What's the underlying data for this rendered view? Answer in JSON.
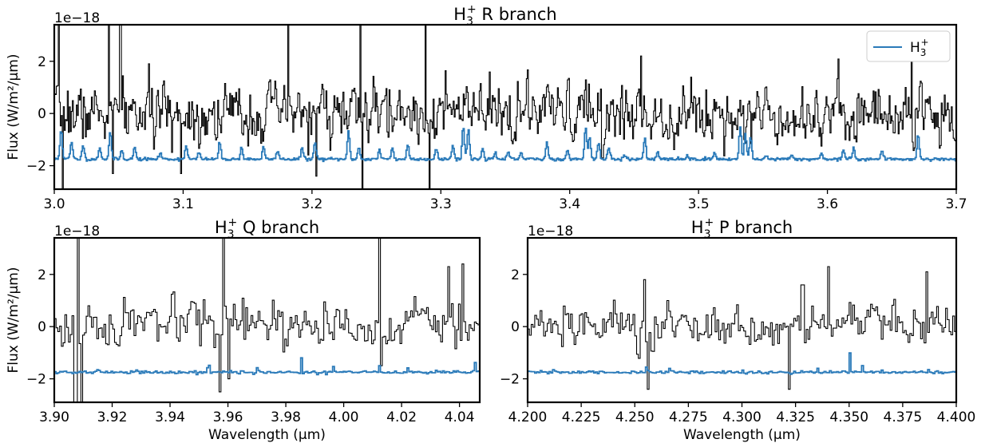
{
  "chart_data": [
    {
      "id": "r",
      "type": "line",
      "title_main": "H",
      "title_sub": "3",
      "title_sup": "+",
      "title_rest": " R branch",
      "xlabel": "",
      "ylabel": "Flux (W/m²/μm)",
      "offset_text": "1e−18",
      "xlim": [
        3.0,
        3.7
      ],
      "ylim": [
        -2.9,
        3.4
      ],
      "xticks": [
        3.0,
        3.1,
        3.2,
        3.3,
        3.4,
        3.5,
        3.6,
        3.7
      ],
      "xtick_labels": [
        "3.0",
        "3.1",
        "3.2",
        "3.3",
        "3.4",
        "3.5",
        "3.6",
        "3.7"
      ],
      "yticks": [
        -2,
        0,
        2
      ],
      "ytick_labels": [
        "−2",
        "0",
        "2"
      ],
      "legend": {
        "placement": "top-right",
        "label_main": "H",
        "label_sub": "3",
        "label_sup": "+"
      },
      "series": [
        {
          "name": "H3+",
          "color": "#2a7ab9",
          "baseline": -1.75,
          "peaks": [
            [
              3.005,
              -0.6
            ],
            [
              3.013,
              -1.1
            ],
            [
              3.022,
              -1.2
            ],
            [
              3.035,
              -1.3
            ],
            [
              3.043,
              -0.7
            ],
            [
              3.052,
              -1.4
            ],
            [
              3.062,
              -1.3
            ],
            [
              3.082,
              -1.5
            ],
            [
              3.102,
              -1.2
            ],
            [
              3.112,
              -1.5
            ],
            [
              3.128,
              -1.1
            ],
            [
              3.145,
              -1.3
            ],
            [
              3.162,
              -1.3
            ],
            [
              3.173,
              -1.4
            ],
            [
              3.192,
              -1.3
            ],
            [
              3.202,
              -1.1
            ],
            [
              3.228,
              -0.7
            ],
            [
              3.236,
              -1.3
            ],
            [
              3.252,
              -1.4
            ],
            [
              3.262,
              -1.3
            ],
            [
              3.274,
              -1.2
            ],
            [
              3.296,
              -1.3
            ],
            [
              3.309,
              -1.2
            ],
            [
              3.317,
              -0.5
            ],
            [
              3.321,
              -0.6
            ],
            [
              3.332,
              -1.3
            ],
            [
              3.342,
              -1.5
            ],
            [
              3.352,
              -1.5
            ],
            [
              3.362,
              -1.5
            ],
            [
              3.382,
              -1.1
            ],
            [
              3.398,
              -1.4
            ],
            [
              3.412,
              -0.5
            ],
            [
              3.415,
              -0.9
            ],
            [
              3.422,
              -1.1
            ],
            [
              3.43,
              -1.3
            ],
            [
              3.442,
              -1.6
            ],
            [
              3.458,
              -0.9
            ],
            [
              3.468,
              -1.5
            ],
            [
              3.491,
              -1.6
            ],
            [
              3.512,
              -1.5
            ],
            [
              3.532,
              -0.5
            ],
            [
              3.536,
              -0.8
            ],
            [
              3.54,
              -0.9
            ],
            [
              3.552,
              -1.6
            ],
            [
              3.572,
              -1.6
            ],
            [
              3.595,
              -1.5
            ],
            [
              3.612,
              -1.4
            ],
            [
              3.62,
              -1.3
            ],
            [
              3.642,
              -1.4
            ],
            [
              3.67,
              -0.8
            ]
          ],
          "noise": 0.03,
          "seed": 11
        },
        {
          "name": "data",
          "color": "#000000",
          "mean": 0.0,
          "sd": 0.8,
          "spikes": [
            [
              3.003,
              3.4
            ],
            [
              3.006,
              -2.9
            ],
            [
              3.042,
              3.4
            ],
            [
              3.045,
              -2.3
            ],
            [
              3.051,
              3.4
            ],
            [
              3.098,
              -2.3
            ],
            [
              3.181,
              3.4
            ],
            [
              3.203,
              -2.4
            ],
            [
              3.237,
              3.4
            ],
            [
              3.239,
              -2.9
            ],
            [
              3.288,
              3.4
            ],
            [
              3.291,
              -2.9
            ],
            [
              3.425,
              -1.7
            ],
            [
              3.455,
              2.2
            ],
            [
              3.665,
              2.1
            ],
            [
              3.69,
              -0.3
            ]
          ],
          "seed": 7
        }
      ]
    },
    {
      "id": "q",
      "type": "line",
      "title_main": "H",
      "title_sub": "3",
      "title_sup": "+",
      "title_rest": " Q branch",
      "xlabel": "Wavelength (μm)",
      "ylabel": "Flux (W/m²/μm)",
      "offset_text": "1e−18",
      "xlim": [
        3.9,
        4.047
      ],
      "ylim": [
        -2.9,
        3.4
      ],
      "xticks": [
        3.9,
        3.92,
        3.94,
        3.96,
        3.98,
        4.0,
        4.02,
        4.04
      ],
      "xtick_labels": [
        "3.90",
        "3.92",
        "3.94",
        "3.96",
        "3.98",
        "4.00",
        "4.02",
        "4.04"
      ],
      "yticks": [
        -2,
        0,
        2
      ],
      "ytick_labels": [
        "−2",
        "0",
        "2"
      ],
      "series": [
        {
          "name": "H3+",
          "color": "#2a7ab9",
          "baseline": -1.75,
          "peaks": [
            [
              3.915,
              -1.5
            ],
            [
              3.928,
              -1.6
            ],
            [
              3.943,
              -1.6
            ],
            [
              3.953,
              -0.95
            ],
            [
              3.97,
              -1.5
            ],
            [
              3.985,
              -1.0
            ],
            [
              3.996,
              -1.5
            ],
            [
              4.012,
              -1.5
            ],
            [
              4.022,
              -1.5
            ],
            [
              4.045,
              -1.2
            ]
          ],
          "noise": 0.03,
          "seed": 21
        },
        {
          "name": "data",
          "color": "#000000",
          "mean": 0.0,
          "sd": 0.65,
          "spikes": [
            [
              3.907,
              -2.9
            ],
            [
              3.908,
              3.4
            ],
            [
              3.909,
              -2.9
            ],
            [
              3.957,
              -2.5
            ],
            [
              3.958,
              3.4
            ],
            [
              3.96,
              -2.0
            ],
            [
              4.012,
              3.4
            ],
            [
              4.0125,
              -1.5
            ],
            [
              4.036,
              2.3
            ],
            [
              4.041,
              2.4
            ]
          ],
          "seed": 17
        }
      ]
    },
    {
      "id": "p",
      "type": "line",
      "title_main": "H",
      "title_sub": "3",
      "title_sup": "+",
      "title_rest": " P branch",
      "xlabel": "Wavelength (μm)",
      "ylabel": "",
      "offset_text": "1e−18",
      "xlim": [
        4.2,
        4.4
      ],
      "ylim": [
        -2.9,
        3.4
      ],
      "xticks": [
        4.2,
        4.225,
        4.25,
        4.275,
        4.3,
        4.325,
        4.35,
        4.375,
        4.4
      ],
      "xtick_labels": [
        "4.200",
        "4.225",
        "4.250",
        "4.275",
        "4.300",
        "4.325",
        "4.350",
        "4.375",
        "4.400"
      ],
      "yticks": [
        -2,
        0,
        2
      ],
      "ytick_labels": [
        "−2",
        "0",
        "2"
      ],
      "series": [
        {
          "name": "H3+",
          "color": "#2a7ab9",
          "baseline": -1.75,
          "peaks": [
            [
              4.212,
              -1.5
            ],
            [
              4.255,
              -1.6
            ],
            [
              4.266,
              -1.6
            ],
            [
              4.3,
              -1.65
            ],
            [
              4.335,
              -1.6
            ],
            [
              4.35,
              -1.0
            ],
            [
              4.356,
              -1.4
            ],
            [
              4.387,
              -1.5
            ]
          ],
          "noise": 0.03,
          "seed": 31
        },
        {
          "name": "data",
          "color": "#000000",
          "mean": 0.0,
          "sd": 0.6,
          "spikes": [
            [
              4.254,
              1.8
            ],
            [
              4.256,
              -2.4
            ],
            [
              4.322,
              -2.4
            ],
            [
              4.328,
              1.6
            ],
            [
              4.34,
              2.3
            ],
            [
              4.386,
              2.1
            ]
          ],
          "seed": 27
        }
      ]
    }
  ]
}
